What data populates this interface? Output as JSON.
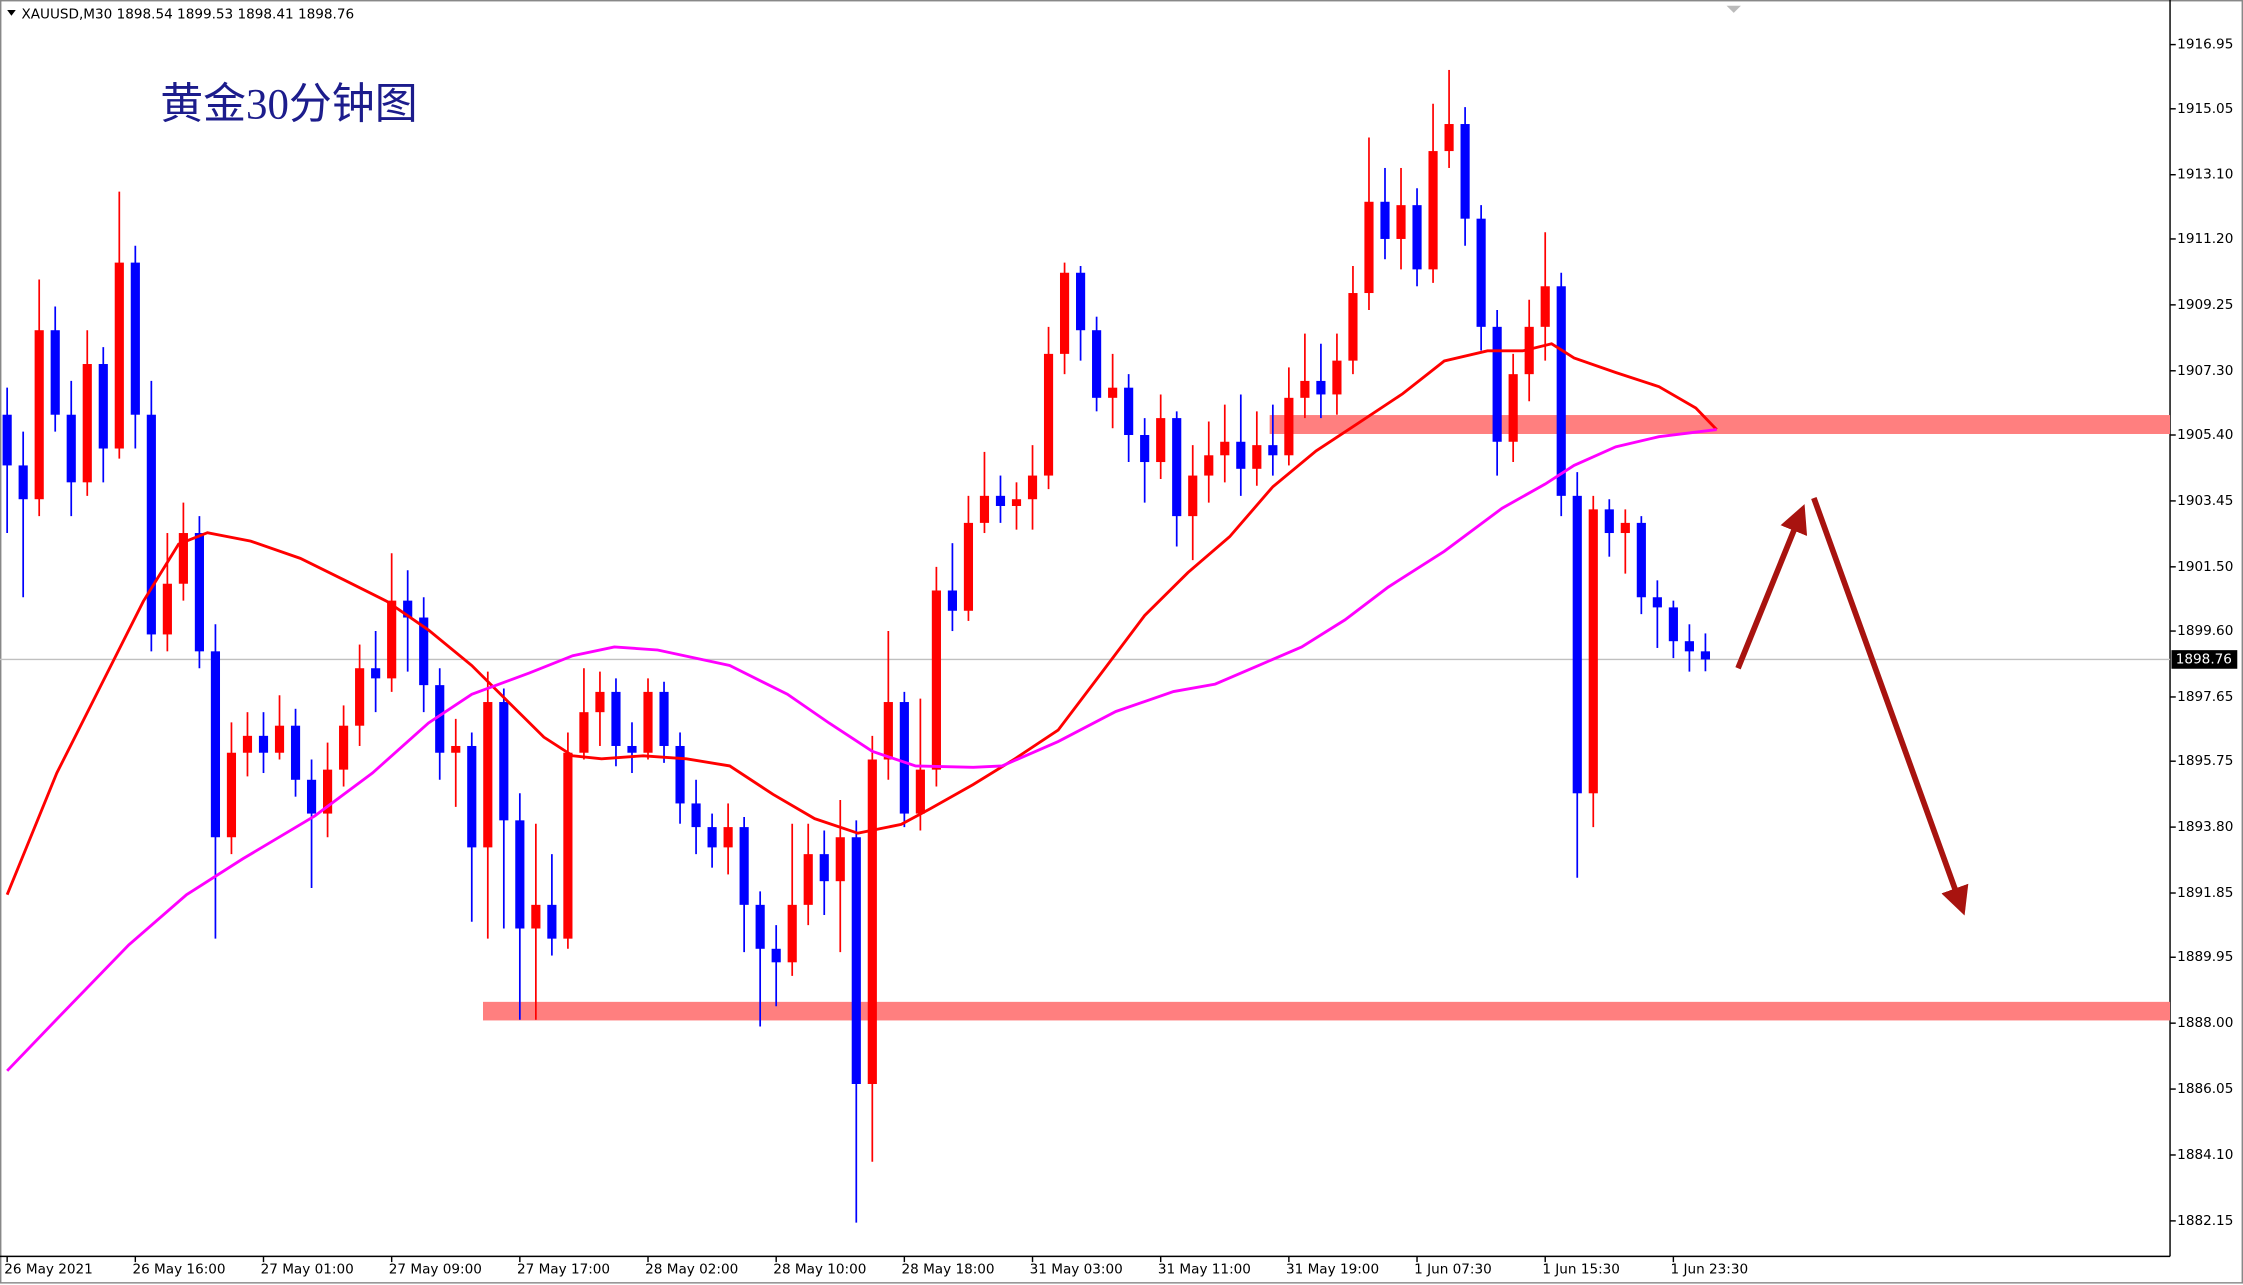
{
  "chart_data": {
    "type": "candlestick",
    "title": "黄金30分钟图",
    "header": "XAUUSD,M30  1898.54 1899.53 1898.41 1898.76",
    "categories": [
      "26 May 2021",
      null,
      null,
      null,
      null,
      null,
      null,
      null,
      "26 May 16:00",
      null,
      null,
      null,
      null,
      null,
      null,
      null,
      "27 May 01:00",
      null,
      null,
      null,
      null,
      null,
      null,
      null,
      "27 May 09:00",
      null,
      null,
      null,
      null,
      null,
      null,
      null,
      "27 May 17:00",
      null,
      null,
      null,
      null,
      null,
      null,
      null,
      "28 May 02:00",
      null,
      null,
      null,
      null,
      null,
      null,
      null,
      "28 May 10:00",
      null,
      null,
      null,
      null,
      null,
      null,
      null,
      "28 May 18:00",
      null,
      null,
      null,
      null,
      null,
      null,
      null,
      "31 May 03:00",
      null,
      null,
      null,
      null,
      null,
      null,
      null,
      "31 May 11:00",
      null,
      null,
      null,
      null,
      null,
      null,
      null,
      "31 May 19:00",
      null,
      null,
      null,
      null,
      null,
      null,
      null,
      "1 Jun 07:30",
      null,
      null,
      null,
      null,
      null,
      null,
      null,
      "1 Jun 15:30",
      null,
      null,
      null,
      null,
      null,
      null,
      null,
      "1 Jun 23:30",
      null,
      null
    ],
    "open": [
      1906,
      1904.5,
      1903.5,
      1908.5,
      1906,
      1904,
      1907.5,
      1905,
      1910.5,
      1906,
      1899.5,
      1901,
      1902.5,
      1899,
      1893.5,
      1896,
      1896.5,
      1896,
      1896.8,
      1895.2,
      1894.2,
      1895.5,
      1896.8,
      1898.5,
      1898.2,
      1900.5,
      1900,
      1898,
      1896,
      1896.2,
      1893.2,
      1897.5,
      1894,
      1890.8,
      1891.5,
      1890.5,
      1896,
      1897.2,
      1897.8,
      1896.2,
      1896,
      1897.8,
      1896.2,
      1894.5,
      1893.8,
      1893.2,
      1893.8,
      1891.5,
      1890.2,
      1889.8,
      1891.5,
      1893,
      1892.2,
      1893.5,
      1886.2,
      1895.8,
      1897.5,
      1894.2,
      1895.5,
      1900.8,
      1900.2,
      1902.8,
      1903.6,
      1903.3,
      1903.5,
      1904.2,
      1907.8,
      1910.2,
      1908.5,
      1906.5,
      1906.8,
      1905.4,
      1904.6,
      1905.9,
      1903,
      1904.2,
      1904.8,
      1905.2,
      1904.4,
      1905.1,
      1904.8,
      1906.5,
      1907,
      1906.6,
      1907.6,
      1909.6,
      1912.3,
      1911.2,
      1912.2,
      1910.3,
      1913.8,
      1914.6,
      1911.8,
      1908.6,
      1905.2,
      1907.2,
      1908.6,
      1909.8,
      1903.6,
      1894.8,
      1903.2,
      1902.5,
      1902.8,
      1900.6,
      1900.3,
      1899.3,
      1899
    ],
    "high": [
      1906.8,
      1905.5,
      1910,
      1909.2,
      1907,
      1908.5,
      1908,
      1912.6,
      1911,
      1907,
      1902.5,
      1903.4,
      1903,
      1899.8,
      1896.9,
      1897.2,
      1897.2,
      1897.7,
      1897.3,
      1895.8,
      1896.3,
      1897.4,
      1899.2,
      1899.6,
      1901.9,
      1901.4,
      1900.6,
      1898.5,
      1897,
      1896.6,
      1898.4,
      1897.9,
      1894.8,
      1893.9,
      1893,
      1896.6,
      1898.5,
      1898.4,
      1898.2,
      1896.9,
      1898.2,
      1898.1,
      1896.6,
      1895.2,
      1894.2,
      1894.5,
      1894.1,
      1891.9,
      1890.9,
      1893.9,
      1893.9,
      1893.7,
      1894.6,
      1894,
      1896.5,
      1899.6,
      1897.8,
      1897.6,
      1901.5,
      1902.2,
      1903.6,
      1904.9,
      1904.2,
      1904,
      1905.1,
      1908.6,
      1910.5,
      1910.4,
      1908.9,
      1907.8,
      1907.2,
      1905.9,
      1906.6,
      1906.1,
      1905.1,
      1905.8,
      1906.3,
      1906.6,
      1906.1,
      1906.3,
      1907.4,
      1908.4,
      1908.1,
      1908.4,
      1910.4,
      1914.2,
      1913.3,
      1913.3,
      1912.7,
      1915.2,
      1916.2,
      1915.1,
      1912.2,
      1909.1,
      1907.8,
      1909.4,
      1911.4,
      1910.2,
      1904.3,
      1903.6,
      1903.5,
      1903.2,
      1903,
      1901.1,
      1900.5,
      1899.8,
      1899.53
    ],
    "low": [
      1902.5,
      1900.6,
      1903,
      1905.5,
      1903,
      1903.6,
      1904,
      1904.7,
      1905,
      1899,
      1899,
      1900.5,
      1898.5,
      1890.5,
      1893,
      1895.3,
      1895.4,
      1895.8,
      1894.7,
      1892,
      1893.5,
      1895,
      1896.2,
      1897.2,
      1897.8,
      1898.4,
      1897.2,
      1895.2,
      1894.4,
      1891,
      1890.5,
      1890.8,
      1888.1,
      1888.1,
      1890,
      1890.2,
      1895.8,
      1896.2,
      1895.6,
      1895.4,
      1895.8,
      1895.7,
      1893.9,
      1893,
      1892.6,
      1892.4,
      1890.1,
      1887.9,
      1888.5,
      1889.4,
      1890.9,
      1891.2,
      1890.1,
      1882.1,
      1883.9,
      1895.2,
      1893.8,
      1893.7,
      1895,
      1899.6,
      1899.9,
      1902.5,
      1902.8,
      1902.6,
      1902.6,
      1903.8,
      1907.2,
      1907.6,
      1906.1,
      1905.6,
      1904.6,
      1903.4,
      1904.1,
      1902.1,
      1901.7,
      1903.4,
      1904,
      1903.6,
      1903.9,
      1904.2,
      1904.5,
      1905.9,
      1905.9,
      1906,
      1907.2,
      1909.1,
      1910.6,
      1910.3,
      1909.8,
      1909.9,
      1913.3,
      1911,
      1907.9,
      1904.2,
      1904.6,
      1906.4,
      1907.6,
      1903,
      1892.3,
      1893.8,
      1901.8,
      1901.3,
      1900.1,
      1899.1,
      1898.8,
      1898.4,
      1898.41
    ],
    "close": [
      1904.5,
      1903.5,
      1908.5,
      1906,
      1904,
      1907.5,
      1905,
      1910.5,
      1906,
      1899.5,
      1901,
      1902.5,
      1899,
      1893.5,
      1896,
      1896.5,
      1896,
      1896.8,
      1895.2,
      1894.2,
      1895.5,
      1896.8,
      1898.5,
      1898.2,
      1900.5,
      1900,
      1898,
      1896,
      1896.2,
      1893.2,
      1897.5,
      1894,
      1890.8,
      1891.5,
      1890.5,
      1896,
      1897.2,
      1897.8,
      1896.2,
      1896,
      1897.8,
      1896.2,
      1894.5,
      1893.8,
      1893.2,
      1893.8,
      1891.5,
      1890.2,
      1889.8,
      1891.5,
      1893,
      1892.2,
      1893.5,
      1886.2,
      1895.8,
      1897.5,
      1894.2,
      1895.5,
      1900.8,
      1900.2,
      1902.8,
      1903.6,
      1903.3,
      1903.5,
      1904.2,
      1907.8,
      1910.2,
      1908.5,
      1906.5,
      1906.8,
      1905.4,
      1904.6,
      1905.9,
      1903,
      1904.2,
      1904.8,
      1905.2,
      1904.4,
      1905.1,
      1904.8,
      1906.5,
      1907,
      1906.6,
      1907.6,
      1909.6,
      1912.3,
      1911.2,
      1912.2,
      1910.3,
      1913.8,
      1914.6,
      1911.8,
      1908.6,
      1905.2,
      1907.2,
      1908.6,
      1909.8,
      1903.6,
      1894.8,
      1903.2,
      1902.5,
      1902.8,
      1900.6,
      1900.3,
      1899.3,
      1899,
      1898.76
    ],
    "up_color": "#ff0000",
    "down_color": "#0000ff",
    "ylim": [
      1881.1,
      1918.1
    ],
    "yticks": [
      1916.95,
      1915.05,
      {
        "value": 1913.1,
        "label": "1913.10"
      },
      {
        "value": 1911.2,
        "label": "1911.20"
      },
      1909.25,
      {
        "value": 1907.3,
        "label": "1907.30"
      },
      {
        "value": 1905.4,
        "label": "1905.40"
      },
      1903.45,
      {
        "value": 1901.5,
        "label": "1901.50"
      },
      {
        "value": 1899.6,
        "label": "1899.60"
      },
      1897.65,
      1895.75,
      {
        "value": 1893.8,
        "label": "1893.80"
      },
      1891.85,
      1889.95,
      {
        "value": 1888,
        "label": "1888.00"
      },
      1886.05,
      {
        "value": 1884.1,
        "label": "1884.10"
      },
      1882.15
    ],
    "last_price": 1898.76,
    "moving_averages": [
      {
        "color": "#ff0000",
        "x": [
          0,
          3.1,
          5.8,
          8.5,
          10.7,
          12.5,
          15.2,
          18.3,
          21,
          23.7,
          26.3,
          29,
          30.8,
          33.5,
          35.3,
          37.1,
          39.7,
          42.4,
          45.1,
          47.8,
          50.4,
          53.1,
          55.8,
          57.6,
          60.3,
          62.9,
          65.6,
          68.3,
          71,
          73.7,
          76.3,
          79,
          81.7,
          84.4,
          87.1,
          89.7,
          92.4,
          94.6,
          96.4,
          97.8,
          100.4,
          103.1,
          105.4,
          106.7
        ],
        "values": [
          1891.8,
          1895.4,
          1897.94,
          1900.48,
          1902.17,
          1902.51,
          1902.26,
          1901.75,
          1901.12,
          1900.48,
          1899.63,
          1898.58,
          1897.73,
          1896.46,
          1895.91,
          1895.82,
          1895.91,
          1895.82,
          1895.61,
          1894.77,
          1894.05,
          1893.62,
          1893.88,
          1894.34,
          1895.06,
          1895.82,
          1896.67,
          1898.36,
          1900.06,
          1901.33,
          1902.39,
          1903.87,
          1904.93,
          1905.77,
          1906.62,
          1907.59,
          1907.89,
          1907.89,
          1908.1,
          1907.68,
          1907.25,
          1906.83,
          1906.2,
          1905.56
        ]
      },
      {
        "color": "#ff00ff",
        "x": [
          0,
          3.1,
          7.6,
          11.2,
          14.7,
          19.2,
          22.8,
          26.3,
          29,
          32.6,
          35.3,
          37.9,
          40.6,
          45.1,
          48.7,
          51.3,
          54,
          56.7,
          60.3,
          62.1,
          65.6,
          69.2,
          72.8,
          75.4,
          78.1,
          80.8,
          83.5,
          86.2,
          89.7,
          93.3,
          96,
          97.8,
          100.4,
          103.1,
          106.7
        ],
        "values": [
          1886.59,
          1888.12,
          1890.32,
          1891.8,
          1892.86,
          1894.13,
          1895.4,
          1896.88,
          1897.73,
          1898.36,
          1898.87,
          1899.13,
          1899.04,
          1898.58,
          1897.73,
          1896.88,
          1896.04,
          1895.61,
          1895.57,
          1895.61,
          1896.33,
          1897.22,
          1897.81,
          1898.03,
          1898.58,
          1899.13,
          1899.93,
          1900.9,
          1901.96,
          1903.23,
          1903.95,
          1904.5,
          1905.05,
          1905.35,
          1905.56
        ]
      }
    ],
    "zones": [
      {
        "from": 1888.08,
        "to": 1888.63,
        "x_start": 29.7,
        "color": "#ff7f7f"
      },
      {
        "from": 1905.43,
        "to": 1905.99,
        "x_start": 78.8,
        "color": "#ff7f7f"
      }
    ]
  }
}
